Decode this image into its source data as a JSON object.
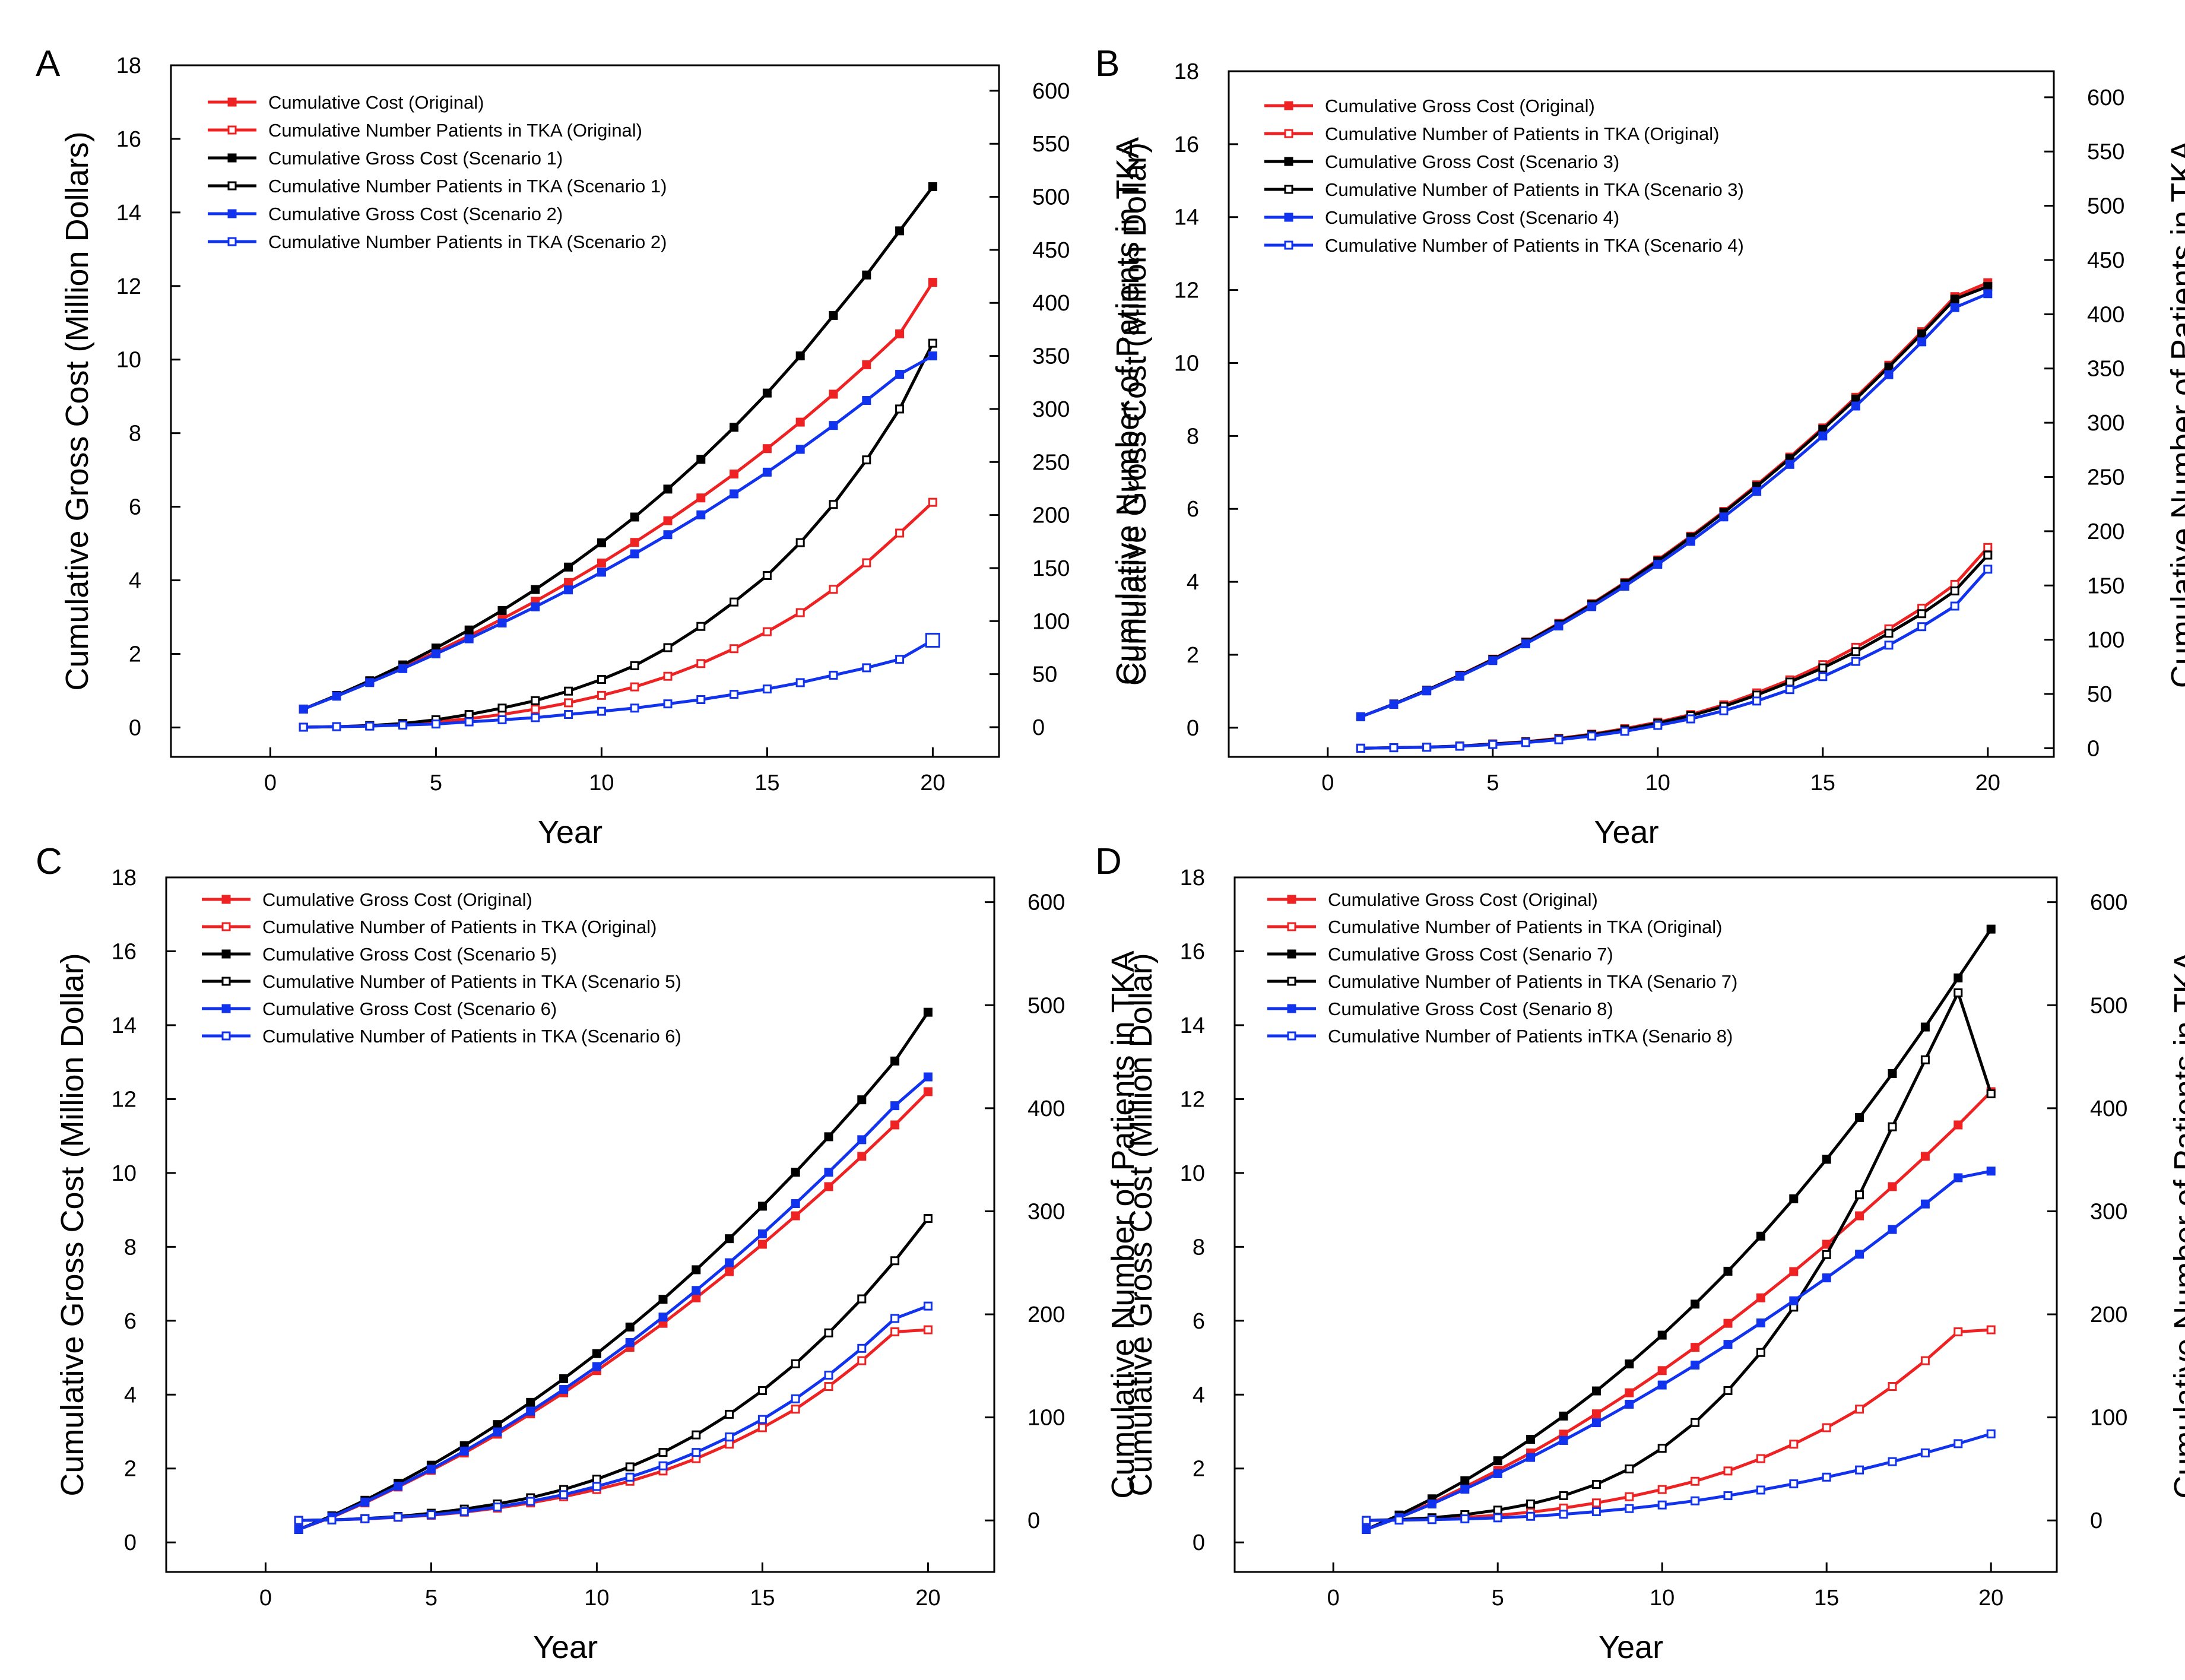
{
  "figure": {
    "x_ticks": [
      "0",
      "5",
      "10",
      "15",
      "20"
    ],
    "left_ticks": [
      "0",
      "2",
      "4",
      "6",
      "8",
      "10",
      "12",
      "14",
      "16",
      "18"
    ],
    "right_ticks_fine": [
      "0",
      "50",
      "100",
      "150",
      "200",
      "250",
      "300",
      "350",
      "400",
      "450",
      "500",
      "550",
      "600"
    ],
    "right_ticks_coarse": [
      "0",
      "100",
      "200",
      "300",
      "400",
      "500",
      "600"
    ]
  },
  "colors": {
    "original": "#ee2222",
    "scenario_a": "#000000",
    "scenario_b": "#1133ee"
  },
  "chart_data": [
    {
      "type": "line",
      "panel": "A",
      "xlabel": "Year",
      "ylabel": "Cumulative Gross Cost (Million Dollars)",
      "y2label": "Cumulative Number of Patients in TKA",
      "xlim": [
        -3,
        22
      ],
      "ylim": [
        -0.8,
        18
      ],
      "y2lim": [
        -28,
        624
      ],
      "x": [
        1,
        2,
        3,
        4,
        5,
        6,
        7,
        8,
        9,
        10,
        11,
        12,
        13,
        14,
        15,
        16,
        17,
        18,
        19,
        20
      ],
      "series": [
        {
          "name": "Cumulative Cost (Original)",
          "axis": "left",
          "color_key": "original",
          "marker": "filled",
          "values": [
            0.5,
            0.86,
            1.24,
            1.63,
            2.05,
            2.49,
            2.95,
            3.43,
            3.94,
            4.47,
            5.03,
            5.62,
            6.24,
            6.89,
            7.58,
            8.3,
            9.06,
            9.86,
            10.7,
            12.1
          ]
        },
        {
          "name": "Cumulative Number Patients in TKA (Original)",
          "axis": "right",
          "color_key": "original",
          "marker": "open",
          "values": [
            0,
            0.5,
            1.5,
            3,
            5,
            8,
            12,
            17,
            23,
            30,
            38,
            48,
            60,
            74,
            90,
            108,
            130,
            155,
            183,
            212
          ]
        },
        {
          "name": "Cumulative Gross Cost (Scenario 1)",
          "axis": "left",
          "color_key": "scenario_a",
          "marker": "filled",
          "values": [
            0.5,
            0.87,
            1.27,
            1.7,
            2.16,
            2.65,
            3.18,
            3.75,
            4.36,
            5.02,
            5.72,
            6.48,
            7.29,
            8.16,
            9.09,
            10.1,
            11.2,
            12.3,
            13.5,
            14.7
          ]
        },
        {
          "name": "Cumulative Number Patients in TKA (Scenario 1)",
          "axis": "right",
          "color_key": "scenario_a",
          "marker": "open",
          "values": [
            0,
            0.5,
            1.5,
            3.5,
            7,
            12,
            18,
            25,
            34,
            45,
            58,
            75,
            95,
            118,
            143,
            174,
            210,
            252,
            300,
            362
          ]
        },
        {
          "name": "Cumulative Gross Cost (Scenario 2)",
          "axis": "left",
          "color_key": "scenario_b",
          "marker": "filled",
          "values": [
            0.5,
            0.85,
            1.22,
            1.6,
            2.0,
            2.41,
            2.84,
            3.28,
            3.74,
            4.22,
            4.72,
            5.24,
            5.78,
            6.35,
            6.94,
            7.56,
            8.21,
            8.89,
            9.6,
            10.1
          ]
        },
        {
          "name": "Cumulative Number Patients in TKA (Scenario 2)",
          "axis": "right",
          "color_key": "scenario_b",
          "marker": "open",
          "values": [
            0,
            0.5,
            1,
            2,
            3,
            5,
            7,
            9,
            12,
            15,
            18,
            22,
            26,
            31,
            36,
            42,
            49,
            56,
            64,
            82
          ]
        }
      ],
      "legend_labels": [
        "Cumulative Cost (Original)",
        "Cumulative Number Patients in TKA (Original)",
        "Cumulative Gross Cost (Scenario 1)",
        "Cumulative Number Patients in TKA (Scenario 1)",
        "Cumulative Gross Cost (Scenario 2)",
        "Cumulative Number Patients in TKA (Scenario 2)"
      ]
    },
    {
      "type": "line",
      "panel": "B",
      "xlabel": "Year",
      "ylabel": "Cumulative Gross Cost (Million Dollar)",
      "y2label": "Cumulative Number of Patients in TKA",
      "xlim": [
        -3,
        22
      ],
      "ylim": [
        -0.8,
        18
      ],
      "y2lim": [
        -8,
        624
      ],
      "x": [
        1,
        2,
        3,
        4,
        5,
        6,
        7,
        8,
        9,
        10,
        11,
        12,
        13,
        14,
        15,
        16,
        17,
        18,
        19,
        20
      ],
      "series": [
        {
          "name": "Cumulative Gross Cost (Original)",
          "axis": "left",
          "color_key": "original",
          "marker": "filled",
          "values": [
            0.3,
            0.65,
            1.03,
            1.44,
            1.88,
            2.35,
            2.86,
            3.4,
            3.98,
            4.6,
            5.25,
            5.93,
            6.66,
            7.42,
            8.22,
            9.06,
            9.94,
            10.86,
            11.82,
            12.2
          ]
        },
        {
          "name": "Cumulative Number of Patients in TKA (Original)",
          "axis": "right",
          "color_key": "original",
          "marker": "open",
          "values": [
            0,
            0.5,
            1,
            2,
            4,
            6,
            9,
            13,
            18,
            24,
            31,
            40,
            51,
            63,
            77,
            93,
            110,
            129,
            151,
            185
          ]
        },
        {
          "name": "Cumulative Gross Cost (Scenario 3)",
          "axis": "left",
          "color_key": "scenario_a",
          "marker": "filled",
          "values": [
            0.3,
            0.65,
            1.03,
            1.43,
            1.87,
            2.34,
            2.84,
            3.38,
            3.96,
            4.57,
            5.22,
            5.9,
            6.62,
            7.38,
            8.18,
            9.01,
            9.89,
            10.8,
            11.75,
            12.1
          ]
        },
        {
          "name": "Cumulative Number of Patients in TKA (Scenario 3)",
          "axis": "right",
          "color_key": "scenario_a",
          "marker": "open",
          "values": [
            0,
            0.5,
            1,
            2,
            3.8,
            5.8,
            8.6,
            12.4,
            17.2,
            23,
            30,
            38.5,
            49,
            61,
            74,
            89,
            106,
            124,
            145,
            178
          ]
        },
        {
          "name": "Cumulative Gross Cost (Scenario 4)",
          "axis": "left",
          "color_key": "scenario_b",
          "marker": "filled",
          "values": [
            0.3,
            0.64,
            1.01,
            1.41,
            1.84,
            2.3,
            2.79,
            3.32,
            3.88,
            4.48,
            5.11,
            5.78,
            6.48,
            7.22,
            8.0,
            8.82,
            9.68,
            10.58,
            11.52,
            11.9
          ]
        },
        {
          "name": "Cumulative Number of Patients in TKA (Scenario 4)",
          "axis": "right",
          "color_key": "scenario_b",
          "marker": "open",
          "values": [
            0,
            0.4,
            0.9,
            1.8,
            3.4,
            5.2,
            7.8,
            11.2,
            15.6,
            21,
            27,
            34.5,
            43.5,
            54,
            66,
            80,
            95,
            112,
            131,
            165
          ]
        }
      ],
      "legend_labels": [
        "Cumulative Gross Cost (Original)",
        "Cumulative Number of Patients in TKA (Original)",
        "Cumulative Gross Cost (Scenario 3)",
        "Cumulative Number of Patients in TKA (Scenario 3)",
        "Cumulative Gross Cost (Scenario 4)",
        "Cumulative Number of Patients in TKA (Scenario 4)"
      ]
    },
    {
      "type": "line",
      "panel": "C",
      "xlabel": "Year",
      "ylabel": "Cumulative Gross Cost (Million Dollar)",
      "y2label": "Cumulative Number of Patients in TKA",
      "xlim": [
        -3,
        22
      ],
      "ylim": [
        -0.8,
        18
      ],
      "y2lim": [
        -50,
        624
      ],
      "x": [
        1,
        2,
        3,
        4,
        5,
        6,
        7,
        8,
        9,
        10,
        11,
        12,
        13,
        14,
        15,
        16,
        17,
        18,
        19,
        20
      ],
      "series": [
        {
          "name": "Cumulative Gross Cost (Original)",
          "axis": "left",
          "color_key": "original",
          "marker": "filled",
          "values": [
            0.35,
            0.68,
            1.07,
            1.5,
            1.95,
            2.42,
            2.93,
            3.48,
            4.05,
            4.65,
            5.28,
            5.93,
            6.62,
            7.33,
            8.07,
            8.84,
            9.63,
            10.45,
            11.3,
            12.2
          ]
        },
        {
          "name": "Cumulative Number of Patients in TKA (Original)",
          "axis": "right",
          "color_key": "original",
          "marker": "open",
          "values": [
            0,
            0.5,
            1.5,
            3,
            5,
            8,
            12,
            17,
            23,
            30,
            38,
            48,
            60,
            74,
            90,
            108,
            130,
            155,
            183,
            185
          ]
        },
        {
          "name": "Cumulative Gross Cost (Scenario 5)",
          "axis": "left",
          "color_key": "scenario_a",
          "marker": "filled",
          "values": [
            0.35,
            0.72,
            1.14,
            1.6,
            2.09,
            2.62,
            3.19,
            3.79,
            4.43,
            5.11,
            5.83,
            6.58,
            7.38,
            8.22,
            9.1,
            10.02,
            10.98,
            11.98,
            13.03,
            14.35
          ]
        },
        {
          "name": "Cumulative Number of Patients in TKA (Scenario 5)",
          "axis": "right",
          "color_key": "scenario_a",
          "marker": "open",
          "values": [
            0,
            0.6,
            1.8,
            3.8,
            7,
            11,
            16,
            22,
            30,
            40,
            52,
            66,
            83,
            103,
            126,
            152,
            182,
            215,
            252,
            293
          ]
        },
        {
          "name": "Cumulative Gross Cost (Scenario 6)",
          "axis": "left",
          "color_key": "scenario_b",
          "marker": "filled",
          "values": [
            0.35,
            0.69,
            1.09,
            1.52,
            1.98,
            2.47,
            2.99,
            3.55,
            4.14,
            4.76,
            5.41,
            6.1,
            6.82,
            7.57,
            8.35,
            9.17,
            10.02,
            10.9,
            11.82,
            12.6
          ]
        },
        {
          "name": "Cumulative Number of Patients in TKA (Scenario 6)",
          "axis": "right",
          "color_key": "scenario_b",
          "marker": "open",
          "values": [
            0,
            0.5,
            1.6,
            3.2,
            5.5,
            8.5,
            13,
            18.5,
            25,
            33,
            42,
            53,
            66,
            81,
            98,
            118,
            141,
            167,
            196,
            208
          ]
        }
      ],
      "legend_labels": [
        "Cumulative Gross Cost (Original)",
        "Cumulative Number of Patients in TKA (Original)",
        "Cumulative Gross Cost (Scenario 5)",
        "Cumulative Number of Patients in TKA (Scenario 5)",
        "Cumulative Gross Cost (Scenario 6)",
        "Cumulative Number of Patients in TKA (Scenario 6)"
      ]
    },
    {
      "type": "line",
      "panel": "D",
      "xlabel": "Year",
      "ylabel": "Cumulative Gross Cost (Million Dollar)",
      "y2label": "Cumulative Number of Patients in TKA",
      "xlim": [
        -3,
        22
      ],
      "ylim": [
        -0.8,
        18
      ],
      "y2lim": [
        -50,
        624
      ],
      "x": [
        1,
        2,
        3,
        4,
        5,
        6,
        7,
        8,
        9,
        10,
        11,
        12,
        13,
        14,
        15,
        16,
        17,
        18,
        19,
        20
      ],
      "series": [
        {
          "name": "Cumulative Gross Cost (Original)",
          "axis": "left",
          "color_key": "original",
          "marker": "filled",
          "values": [
            0.35,
            0.68,
            1.07,
            1.5,
            1.95,
            2.42,
            2.93,
            3.48,
            4.05,
            4.65,
            5.28,
            5.93,
            6.62,
            7.33,
            8.07,
            8.84,
            9.63,
            10.45,
            11.3,
            12.2
          ]
        },
        {
          "name": "Cumulative Number of Patients in TKA (Original)",
          "axis": "right",
          "color_key": "original",
          "marker": "open",
          "values": [
            0,
            0.5,
            1.5,
            3,
            5,
            8,
            12,
            17,
            23,
            30,
            38,
            48,
            60,
            74,
            90,
            108,
            130,
            155,
            183,
            185
          ]
        },
        {
          "name": "Cumulative Gross Cost (Senario 7)",
          "axis": "left",
          "color_key": "scenario_a",
          "marker": "filled",
          "values": [
            0.35,
            0.74,
            1.18,
            1.67,
            2.21,
            2.79,
            3.42,
            4.1,
            4.83,
            5.61,
            6.45,
            7.34,
            8.29,
            9.3,
            10.37,
            11.5,
            12.69,
            13.95,
            15.28,
            16.6
          ]
        },
        {
          "name": "Cumulative Number of Patients in TKA (Senario 7)",
          "axis": "right",
          "color_key": "scenario_a",
          "marker": "open",
          "values": [
            0,
            0.8,
            2.6,
            5.6,
            10,
            16,
            24,
            35,
            50,
            70,
            95,
            126,
            163,
            207,
            258,
            316,
            382,
            447,
            512,
            414
          ]
        },
        {
          "name": "Cumulative Gross Cost (Senario 8)",
          "axis": "left",
          "color_key": "scenario_b",
          "marker": "filled",
          "values": [
            0.35,
            0.67,
            1.04,
            1.44,
            1.86,
            2.3,
            2.76,
            3.24,
            3.74,
            4.26,
            4.8,
            5.36,
            5.94,
            6.54,
            7.16,
            7.8,
            8.47,
            9.16,
            9.87,
            10.05
          ]
        },
        {
          "name": "Cumulative Number of Patients inTKA (Senario 8)",
          "axis": "right",
          "color_key": "scenario_b",
          "marker": "open",
          "values": [
            0,
            0.3,
            0.8,
            1.5,
            2.5,
            4,
            6,
            8.5,
            11.5,
            15,
            19,
            24,
            29.5,
            35.5,
            42,
            49,
            57,
            65.5,
            74.5,
            84
          ]
        }
      ],
      "legend_labels": [
        "Cumulative Gross Cost (Original)",
        "Cumulative Number of Patients in TKA (Original)",
        "Cumulative Gross Cost (Senario 7)",
        "Cumulative Number of Patients in TKA (Senario 7)",
        "Cumulative Gross Cost (Senario 8)",
        "Cumulative Number of Patients inTKA (Senario 8)"
      ]
    }
  ]
}
